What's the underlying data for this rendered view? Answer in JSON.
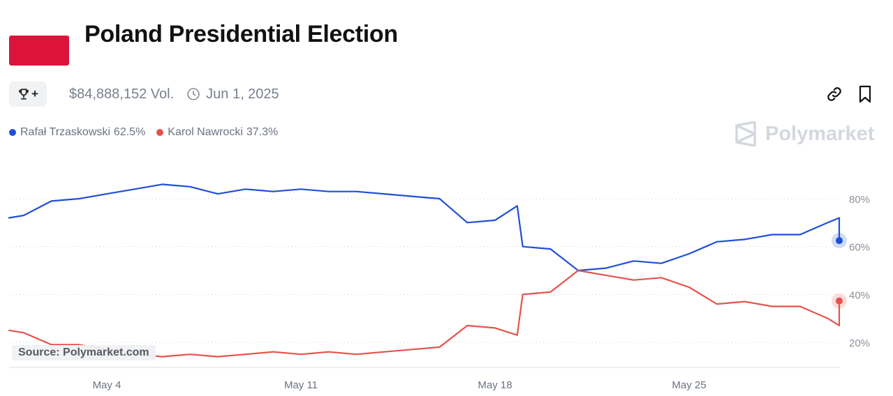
{
  "header": {
    "title": "Poland Presidential Election",
    "volume": "$84,888,152 Vol.",
    "end_date": "Jun 1, 2025",
    "trophy_plus": "+"
  },
  "brand": {
    "name": "Polymarket"
  },
  "source": "Source: Polymarket.com",
  "legend": [
    {
      "name": "Rafał Trzaskowski",
      "value": "62.5%",
      "color": "#1f4fd6"
    },
    {
      "name": "Karol Nawrocki",
      "value": "37.3%",
      "color": "#e5534b"
    }
  ],
  "icons": {
    "trophy": "trophy-icon",
    "clock": "clock-icon",
    "link": "link-icon",
    "bookmark": "bookmark-icon",
    "logo": "polymarket-logo-icon"
  },
  "chart_data": {
    "type": "line",
    "title": "",
    "xlabel": "",
    "ylabel": "",
    "x_ticks": [
      "May 4",
      "May 11",
      "May 18",
      "May 25"
    ],
    "y_ticks": [
      "20%",
      "40%",
      "60%",
      "80%"
    ],
    "ylim": [
      10,
      90
    ],
    "grid": "horizontal-dotted",
    "y_axis": "right",
    "series": [
      {
        "name": "Rafał Trzaskowski",
        "color": "#1f4fd6",
        "points": [
          [
            "2025-04-30",
            72
          ],
          [
            "2025-05-01",
            73
          ],
          [
            "2025-05-02",
            79
          ],
          [
            "2025-05-03",
            80
          ],
          [
            "2025-05-04",
            82
          ],
          [
            "2025-05-05",
            84
          ],
          [
            "2025-05-06",
            86
          ],
          [
            "2025-05-07",
            85
          ],
          [
            "2025-05-08",
            82
          ],
          [
            "2025-05-09",
            84
          ],
          [
            "2025-05-10",
            83
          ],
          [
            "2025-05-11",
            84
          ],
          [
            "2025-05-12",
            83
          ],
          [
            "2025-05-13",
            83
          ],
          [
            "2025-05-14",
            82
          ],
          [
            "2025-05-15",
            81
          ],
          [
            "2025-05-16",
            80
          ],
          [
            "2025-05-17",
            70
          ],
          [
            "2025-05-18",
            71
          ],
          [
            "2025-05-18.8",
            77
          ],
          [
            "2025-05-19",
            60
          ],
          [
            "2025-05-20",
            59
          ],
          [
            "2025-05-21",
            50
          ],
          [
            "2025-05-22",
            51
          ],
          [
            "2025-05-23",
            54
          ],
          [
            "2025-05-24",
            53
          ],
          [
            "2025-05-25",
            57
          ],
          [
            "2025-05-26",
            62
          ],
          [
            "2025-05-27",
            63
          ],
          [
            "2025-05-28",
            65
          ],
          [
            "2025-05-29",
            65
          ],
          [
            "2025-05-30",
            70
          ],
          [
            "2025-05-31",
            72
          ],
          [
            "2025-05-31.6",
            62.5
          ]
        ]
      },
      {
        "name": "Karol Nawrocki",
        "color": "#e5534b",
        "points": [
          [
            "2025-04-30",
            25
          ],
          [
            "2025-05-01",
            24
          ],
          [
            "2025-05-02",
            19
          ],
          [
            "2025-05-03",
            19
          ],
          [
            "2025-05-04",
            17
          ],
          [
            "2025-05-05",
            15
          ],
          [
            "2025-05-06",
            14
          ],
          [
            "2025-05-07",
            15
          ],
          [
            "2025-05-08",
            14
          ],
          [
            "2025-05-09",
            15
          ],
          [
            "2025-05-10",
            16
          ],
          [
            "2025-05-11",
            15
          ],
          [
            "2025-05-12",
            16
          ],
          [
            "2025-05-13",
            15
          ],
          [
            "2025-05-14",
            16
          ],
          [
            "2025-05-15",
            17
          ],
          [
            "2025-05-16",
            18
          ],
          [
            "2025-05-17",
            27
          ],
          [
            "2025-05-18",
            26
          ],
          [
            "2025-05-18.8",
            23
          ],
          [
            "2025-05-19",
            40
          ],
          [
            "2025-05-20",
            41
          ],
          [
            "2025-05-21",
            50
          ],
          [
            "2025-05-22",
            48
          ],
          [
            "2025-05-23",
            46
          ],
          [
            "2025-05-24",
            47
          ],
          [
            "2025-05-25",
            43
          ],
          [
            "2025-05-26",
            36
          ],
          [
            "2025-05-27",
            37
          ],
          [
            "2025-05-28",
            35
          ],
          [
            "2025-05-29",
            35
          ],
          [
            "2025-05-30",
            30
          ],
          [
            "2025-05-31",
            27
          ],
          [
            "2025-05-31.6",
            37.3
          ]
        ]
      }
    ]
  }
}
